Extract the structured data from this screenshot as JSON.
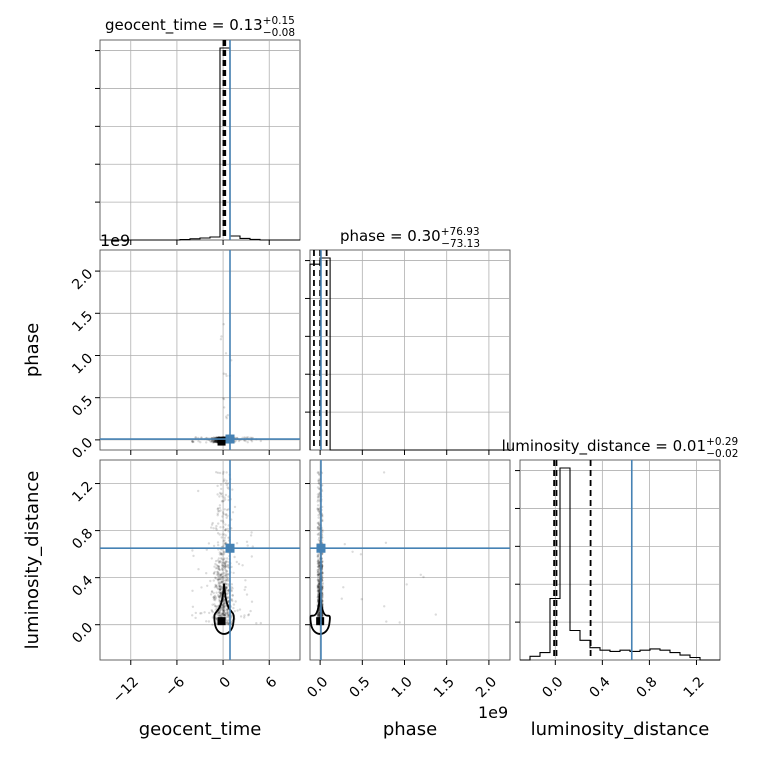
{
  "chart_data": {
    "type": "scatter",
    "kind": "corner-plot",
    "parameters": [
      "geocent_time",
      "phase",
      "luminosity_distance"
    ],
    "axis_labels": {
      "geocent_time": "geocent_time",
      "phase": "phase",
      "luminosity_distance": "luminosity_distance"
    },
    "titles": {
      "geocent_time": {
        "name": "geocent_time",
        "median": "0.13",
        "plus": "+0.15",
        "minus": "−0.08"
      },
      "phase": {
        "name": "phase",
        "median": "0.30",
        "plus": "+76.93",
        "minus": "−73.13"
      },
      "luminosity_distance": {
        "name": "luminosity_distance",
        "median": "0.01",
        "plus": "+0.29",
        "minus": "−0.02"
      }
    },
    "offset_text": "1e9",
    "ranges": {
      "geocent_time": [
        -16,
        10
      ],
      "phase": [
        -120000000.0,
        2250000000.0
      ],
      "luminosity_distance": [
        -0.3,
        1.4
      ]
    },
    "ticks": {
      "geocent_time": {
        "values": [
          -12,
          -6,
          0,
          6
        ],
        "labels": [
          "−12",
          "−6",
          "0",
          "6"
        ]
      },
      "phase": {
        "values": [
          0,
          500000000.0,
          1000000000.0,
          1500000000.0,
          2000000000.0
        ],
        "labels": [
          "0.0",
          "0.5",
          "1.0",
          "1.5",
          "2.0"
        ]
      },
      "luminosity_distance_y": {
        "values": [
          0,
          0.4,
          0.8,
          1.2
        ],
        "labels": [
          "0.0",
          "0.4",
          "0.8",
          "1.2"
        ]
      },
      "luminosity_distance_x": {
        "values": [
          0,
          0.4,
          0.8,
          1.2
        ],
        "labels": [
          "0.0",
          "0.4",
          "0.8",
          "1.2"
        ]
      }
    },
    "truths": {
      "geocent_time": 0.9,
      "phase": 10000000.0,
      "luminosity_distance": 0.65
    },
    "quantile_lines": {
      "geocent_time": [
        0.05,
        0.13,
        0.28
      ],
      "phase": [
        -73000000.0,
        300000.0,
        77000000.0
      ],
      "luminosity_distance": [
        -0.01,
        0.01,
        0.3
      ]
    },
    "histograms": {
      "geocent_time": {
        "edges": [
          -16,
          -14.7,
          -13.4,
          -12.1,
          -10.8,
          -9.5,
          -8.2,
          -6.9,
          -5.6,
          -4.3,
          -3.0,
          -1.7,
          -0.4,
          0.9,
          2.2,
          3.5,
          4.8,
          6.1,
          7.4,
          8.7,
          10.0
        ],
        "counts": [
          0,
          0,
          0,
          0,
          0,
          0,
          0,
          0,
          0.002,
          0.006,
          0.01,
          0.015,
          0.97,
          0.02,
          0.008,
          0.003,
          0,
          0,
          0,
          0
        ]
      },
      "phase": {
        "edges": [
          -120000000.0,
          -1000000.0,
          118000000.0,
          236000000.0,
          355000000.0,
          473000000.0,
          592000000.0,
          710000000.0,
          829000000.0,
          947000000.0,
          1066000000.0,
          1184000000.0,
          1303000000.0,
          1421000000.0,
          1540000000.0,
          1658000000.0,
          1777000000.0,
          1895000000.0,
          2014000000.0,
          2132000000.0,
          2250000000.0
        ],
        "counts": [
          0.9,
          0.93,
          0,
          0,
          0,
          0,
          0,
          0,
          0,
          0,
          0,
          0,
          0,
          0,
          0,
          0,
          0,
          0,
          0,
          0
        ]
      },
      "luminosity_distance": {
        "edges": [
          -0.3,
          -0.215,
          -0.13,
          -0.045,
          0.04,
          0.125,
          0.21,
          0.295,
          0.38,
          0.465,
          0.55,
          0.635,
          0.72,
          0.805,
          0.89,
          0.975,
          1.06,
          1.145,
          1.23,
          1.315,
          1.4
        ],
        "counts": [
          0,
          0.015,
          0.03,
          0.25,
          0.78,
          0.12,
          0.08,
          0.05,
          0.04,
          0.035,
          0.04,
          0.035,
          0.04,
          0.045,
          0.04,
          0.03,
          0.02,
          0.01,
          0,
          0
        ]
      }
    },
    "grid": true
  }
}
